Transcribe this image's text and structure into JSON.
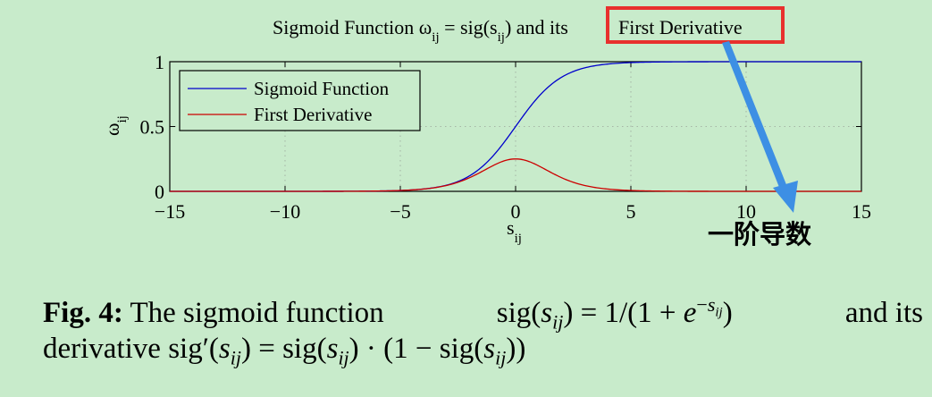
{
  "figure": {
    "title_prefix": "Sigmoid Function ω",
    "title_sub1": "ij",
    "title_mid": " = sig(s",
    "title_sub2": "ij",
    "title_end": ") and its",
    "title_highlight": "First Derivative",
    "annotation_text": "一阶导数",
    "colors": {
      "highlight_box": "#e8302d",
      "arrow": "#3d8fe4",
      "background": "#c8ebcb"
    }
  },
  "chart_data": {
    "type": "line",
    "title": "Sigmoid Function ωij = sig(sij) and its First Derivative",
    "xlabel": "s",
    "xlabel_sub": "ij",
    "ylabel": "ω",
    "ylabel_sub": "ij",
    "xlim": [
      -15,
      15
    ],
    "ylim": [
      0,
      1
    ],
    "x_ticks": [
      -15,
      -10,
      -5,
      0,
      5,
      10,
      15
    ],
    "x_tick_labels": [
      "−15",
      "−10",
      "−5",
      "0",
      "5",
      "10",
      "15"
    ],
    "y_ticks": [
      0,
      0.5,
      1
    ],
    "y_tick_labels": [
      "0",
      "0.5",
      "1"
    ],
    "grid": true,
    "legend_position": "top-left",
    "series": [
      {
        "name": "Sigmoid Function",
        "color": "#0000cc",
        "function": "1/(1+exp(-x))",
        "peak_value": 1.0
      },
      {
        "name": "First Derivative",
        "color": "#cc0000",
        "function": "s(x)*(1-s(x))",
        "peak_value": 0.25
      }
    ]
  },
  "caption": {
    "label": "Fig. 4:",
    "line1_text": "The sigmoid function",
    "line1_tail": "and its",
    "line2_text": "derivative"
  }
}
